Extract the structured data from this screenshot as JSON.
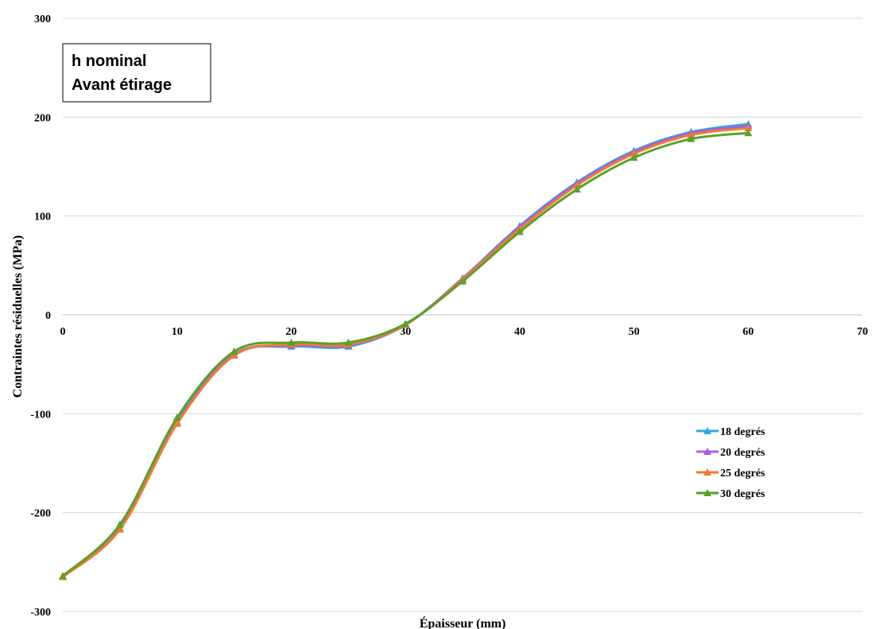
{
  "chart_data": {
    "type": "line",
    "title": "",
    "xlabel": "Épaisseur (mm)",
    "ylabel": "Contraintes résiduelles (MPa)",
    "xlim": [
      0,
      70
    ],
    "ylim": [
      -300,
      300
    ],
    "xticks": [
      0,
      10,
      20,
      30,
      40,
      50,
      60,
      70
    ],
    "yticks": [
      -300,
      -200,
      -100,
      0,
      100,
      200,
      300
    ],
    "grid": "horizontal",
    "legend_position": "right",
    "smooth": true,
    "marker": "triangle",
    "annotation": [
      "h nominal",
      "Avant étirage"
    ],
    "x": [
      0,
      5,
      10,
      15,
      20,
      25,
      30,
      35,
      40,
      45,
      50,
      55,
      60
    ],
    "series": [
      {
        "name": "18 degrés",
        "color": "#2eaadc",
        "values": [
          -265,
          -216,
          -108,
          -40,
          -32,
          -32,
          -10,
          37,
          90,
          134,
          166,
          185,
          193
        ]
      },
      {
        "name": "20 degrés",
        "color": "#a65fe0",
        "values": [
          -265,
          -216,
          -109,
          -40,
          -31,
          -31,
          -10,
          37,
          89,
          133,
          165,
          184,
          191
        ]
      },
      {
        "name": "25 degrés",
        "color": "#ed7d31",
        "values": [
          -265,
          -217,
          -110,
          -41,
          -30,
          -30,
          -10,
          36,
          87,
          131,
          163,
          182,
          189
        ]
      },
      {
        "name": "30 degrés",
        "color": "#5aa02c",
        "values": [
          -264,
          -212,
          -104,
          -37,
          -28,
          -28,
          -9,
          34,
          84,
          127,
          159,
          178,
          184
        ]
      }
    ]
  }
}
